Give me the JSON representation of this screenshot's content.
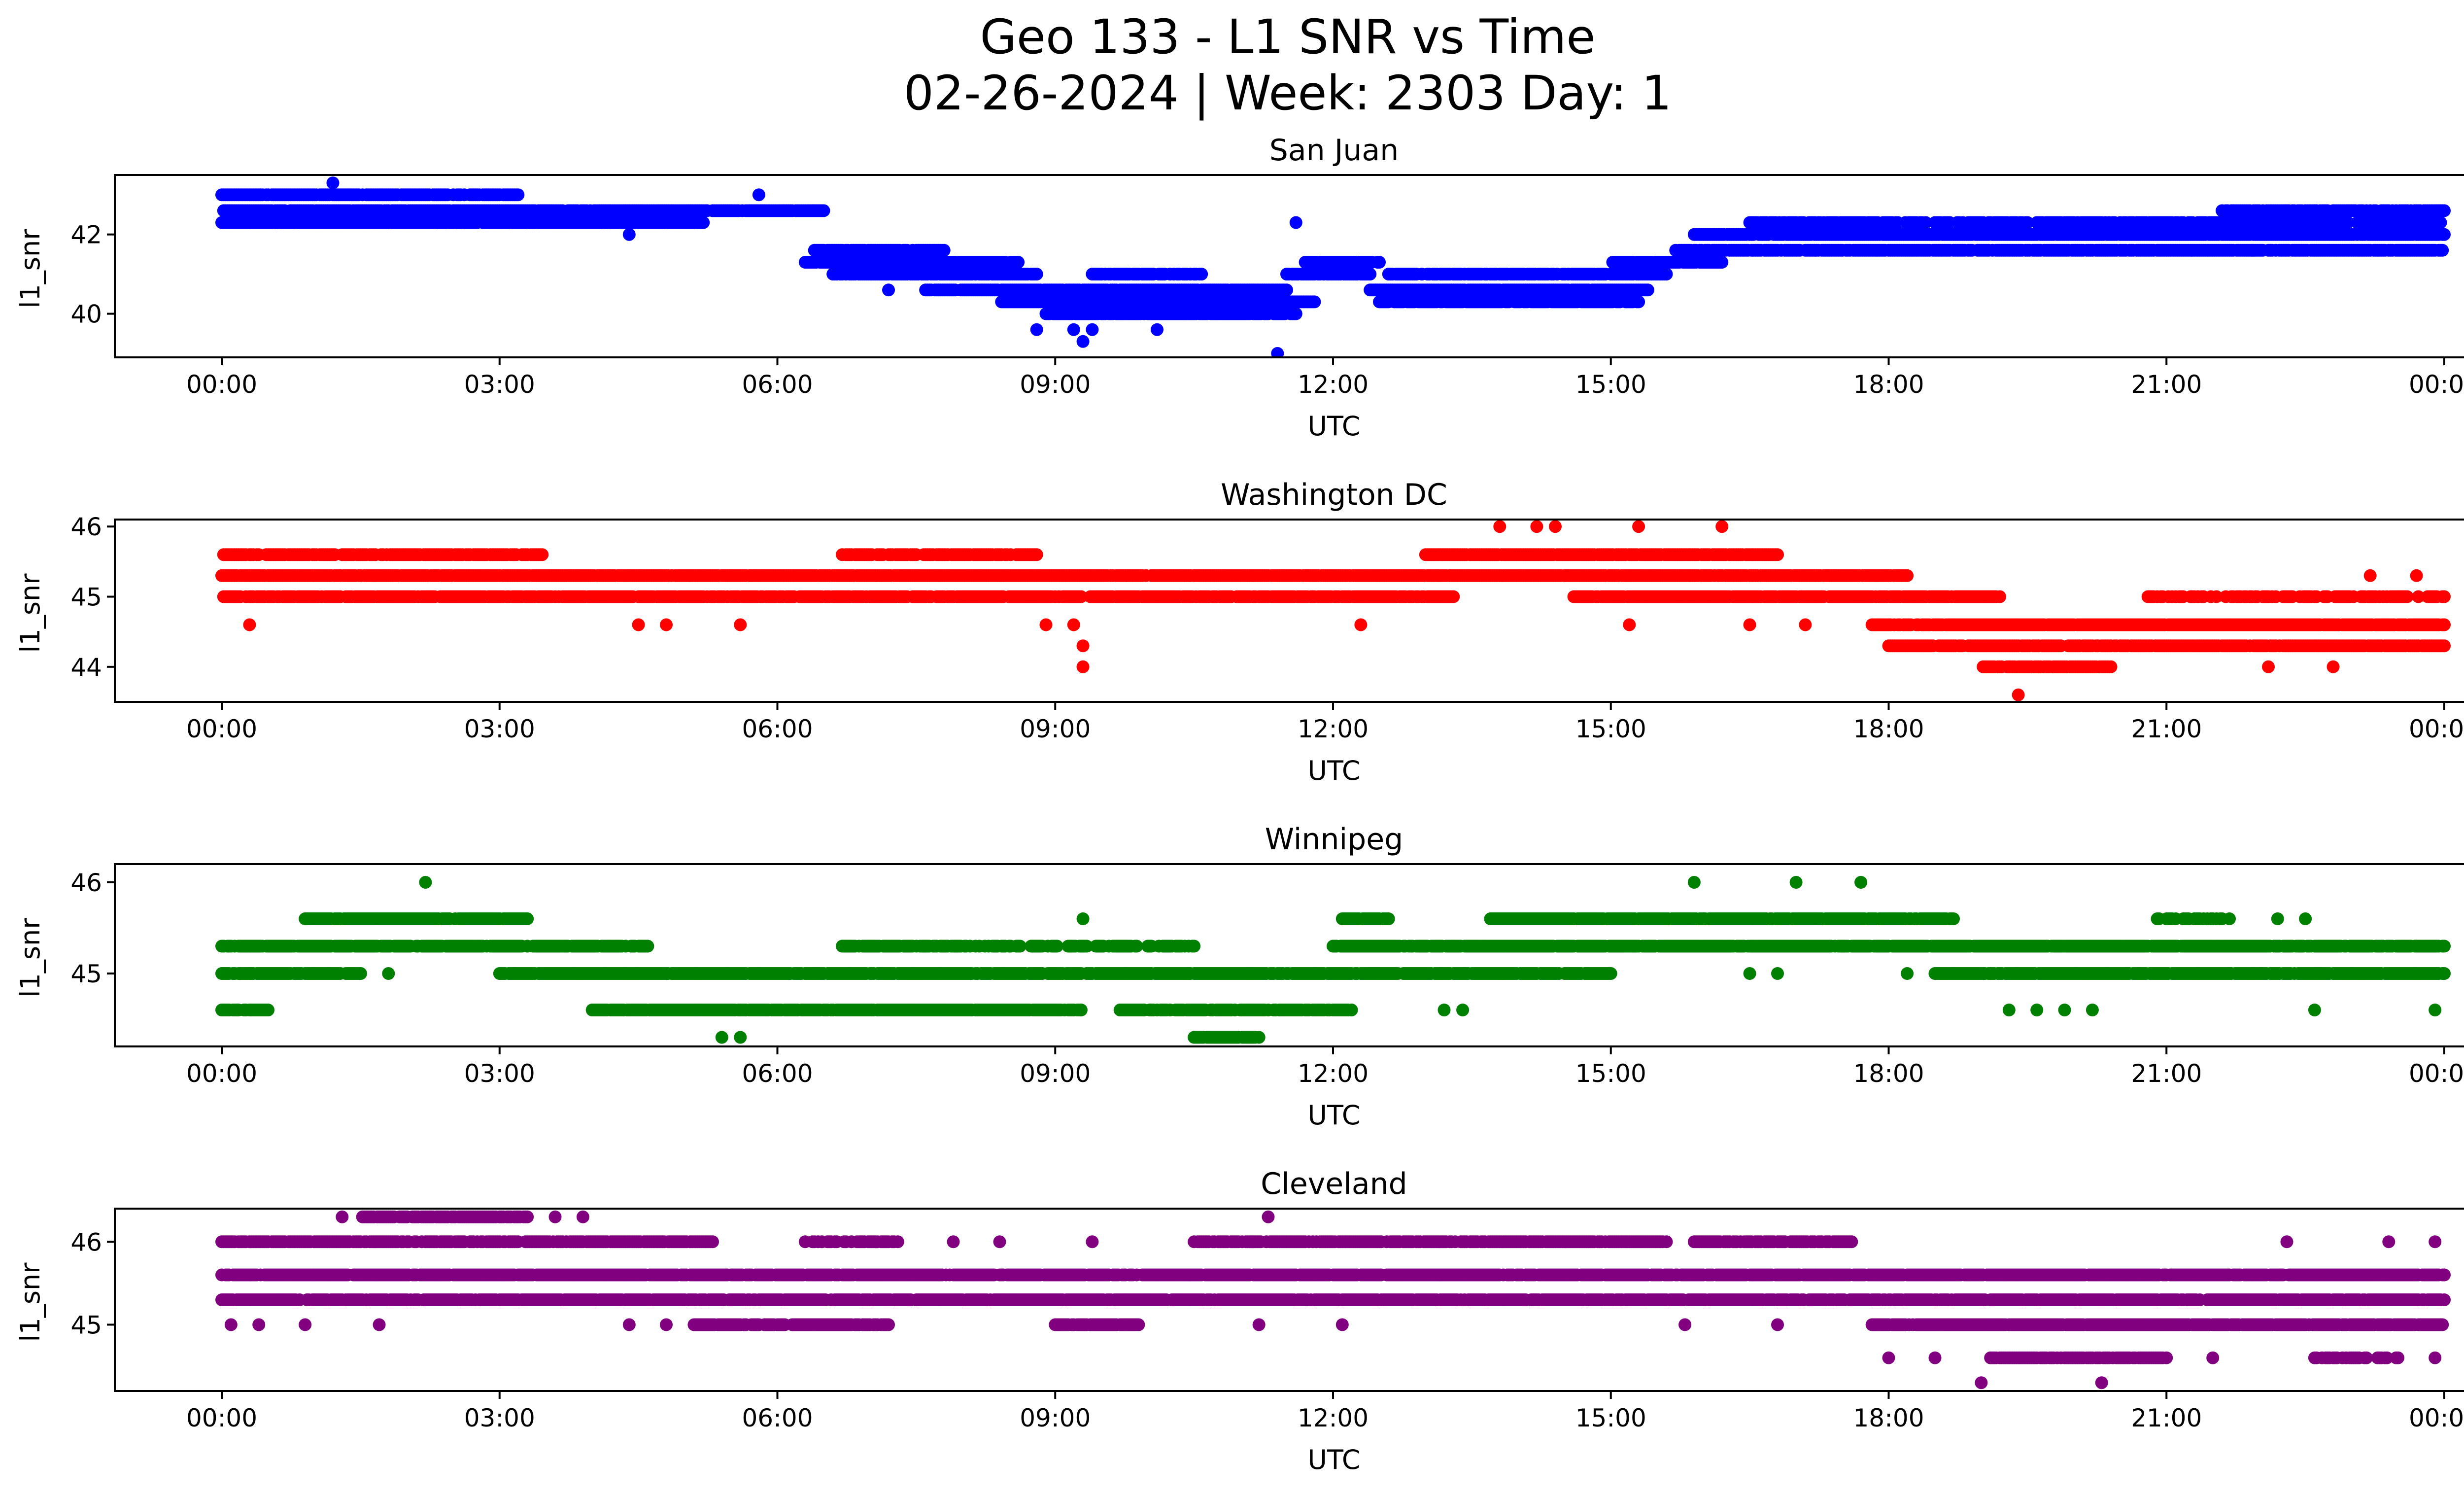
{
  "figure": {
    "title_line1": "Geo 133 - L1 SNR vs Time",
    "title_line2": "02-26-2024 | Week: 2303 Day: 1"
  },
  "chart_data": [
    {
      "type": "scatter",
      "title": "San Juan",
      "xlabel": "UTC",
      "ylabel": "l1_snr",
      "color": "#0000ff",
      "xlim": [
        0,
        24
      ],
      "ylim": [
        38.9,
        43.5
      ],
      "x_ticks": [
        "00:00",
        "03:00",
        "06:00",
        "09:00",
        "12:00",
        "15:00",
        "18:00",
        "21:00",
        "00:00"
      ],
      "y_ticks": [
        40,
        42
      ],
      "bands": [
        {
          "y": 43.0,
          "from": 0.0,
          "to": 3.2,
          "density": 0.9
        },
        {
          "y": 42.6,
          "from": 0.0,
          "to": 6.5,
          "density": 0.95
        },
        {
          "y": 42.3,
          "from": 0.0,
          "to": 5.2,
          "density": 0.9
        },
        {
          "y": 41.6,
          "from": 6.4,
          "to": 7.8,
          "density": 0.9
        },
        {
          "y": 41.3,
          "from": 6.3,
          "to": 8.6,
          "density": 0.9
        },
        {
          "y": 41.0,
          "from": 6.6,
          "to": 8.8,
          "density": 0.9
        },
        {
          "y": 40.6,
          "from": 7.6,
          "to": 11.5,
          "density": 0.9
        },
        {
          "y": 40.3,
          "from": 8.4,
          "to": 11.8,
          "density": 0.95
        },
        {
          "y": 40.0,
          "from": 8.9,
          "to": 11.6,
          "density": 0.9
        },
        {
          "y": 41.0,
          "from": 9.4,
          "to": 10.6,
          "density": 0.8
        },
        {
          "y": 41.0,
          "from": 11.5,
          "to": 12.4,
          "density": 0.9
        },
        {
          "y": 41.3,
          "from": 11.7,
          "to": 12.5,
          "density": 0.9
        },
        {
          "y": 40.6,
          "from": 12.4,
          "to": 15.4,
          "density": 0.95
        },
        {
          "y": 40.3,
          "from": 12.5,
          "to": 15.3,
          "density": 0.9
        },
        {
          "y": 41.0,
          "from": 12.6,
          "to": 15.6,
          "density": 0.85
        },
        {
          "y": 41.3,
          "from": 15.0,
          "to": 16.2,
          "density": 0.9
        },
        {
          "y": 41.6,
          "from": 15.7,
          "to": 24.0,
          "density": 0.9
        },
        {
          "y": 42.0,
          "from": 15.9,
          "to": 24.0,
          "density": 0.95
        },
        {
          "y": 42.3,
          "from": 16.5,
          "to": 24.0,
          "density": 0.75
        },
        {
          "y": 42.6,
          "from": 21.6,
          "to": 24.0,
          "density": 0.8
        }
      ],
      "outliers": [
        {
          "x": 1.2,
          "y": 43.3
        },
        {
          "x": 4.4,
          "y": 42.0
        },
        {
          "x": 5.8,
          "y": 43.0
        },
        {
          "x": 8.8,
          "y": 39.6
        },
        {
          "x": 9.2,
          "y": 39.6
        },
        {
          "x": 9.3,
          "y": 39.3
        },
        {
          "x": 9.4,
          "y": 39.6
        },
        {
          "x": 10.1,
          "y": 39.6
        },
        {
          "x": 11.4,
          "y": 39.0
        },
        {
          "x": 11.6,
          "y": 42.3
        },
        {
          "x": 7.2,
          "y": 40.6
        }
      ]
    },
    {
      "type": "scatter",
      "title": "Washington DC",
      "xlabel": "UTC",
      "ylabel": "l1_snr",
      "color": "#ff0000",
      "xlim": [
        0,
        24
      ],
      "ylim": [
        43.5,
        46.1
      ],
      "x_ticks": [
        "00:00",
        "03:00",
        "06:00",
        "09:00",
        "12:00",
        "15:00",
        "18:00",
        "21:00",
        "00:00"
      ],
      "y_ticks": [
        44,
        45,
        46
      ],
      "bands": [
        {
          "y": 45.6,
          "from": 0.0,
          "to": 3.5,
          "density": 0.85
        },
        {
          "y": 45.6,
          "from": 6.7,
          "to": 8.8,
          "density": 0.85
        },
        {
          "y": 45.6,
          "from": 13.0,
          "to": 16.8,
          "density": 0.95
        },
        {
          "y": 45.3,
          "from": 0.0,
          "to": 18.2,
          "density": 0.95
        },
        {
          "y": 45.0,
          "from": 0.0,
          "to": 13.3,
          "density": 0.85
        },
        {
          "y": 45.0,
          "from": 14.6,
          "to": 19.2,
          "density": 0.9
        },
        {
          "y": 45.0,
          "from": 20.8,
          "to": 24.0,
          "density": 0.6
        },
        {
          "y": 44.6,
          "from": 17.8,
          "to": 24.0,
          "density": 0.95
        },
        {
          "y": 44.3,
          "from": 18.0,
          "to": 24.0,
          "density": 0.9
        },
        {
          "y": 44.0,
          "from": 19.0,
          "to": 20.4,
          "density": 0.85
        }
      ],
      "outliers": [
        {
          "x": 0.3,
          "y": 44.6
        },
        {
          "x": 4.5,
          "y": 44.6
        },
        {
          "x": 4.8,
          "y": 44.6
        },
        {
          "x": 5.6,
          "y": 44.6
        },
        {
          "x": 8.9,
          "y": 44.6
        },
        {
          "x": 9.2,
          "y": 44.6
        },
        {
          "x": 9.3,
          "y": 44.3
        },
        {
          "x": 9.3,
          "y": 44.0
        },
        {
          "x": 12.3,
          "y": 44.6
        },
        {
          "x": 13.8,
          "y": 46.0
        },
        {
          "x": 14.2,
          "y": 46.0
        },
        {
          "x": 14.4,
          "y": 46.0
        },
        {
          "x": 15.3,
          "y": 46.0
        },
        {
          "x": 16.2,
          "y": 46.0
        },
        {
          "x": 15.2,
          "y": 44.6
        },
        {
          "x": 16.5,
          "y": 44.6
        },
        {
          "x": 17.1,
          "y": 44.6
        },
        {
          "x": 19.4,
          "y": 43.6
        },
        {
          "x": 22.8,
          "y": 44.0
        },
        {
          "x": 22.1,
          "y": 44.0
        },
        {
          "x": 23.2,
          "y": 45.3
        },
        {
          "x": 23.7,
          "y": 45.3
        }
      ]
    },
    {
      "type": "scatter",
      "title": "Winnipeg",
      "xlabel": "UTC",
      "ylabel": "l1_snr",
      "color": "#008000",
      "xlim": [
        0,
        24
      ],
      "ylim": [
        44.2,
        46.2
      ],
      "x_ticks": [
        "00:00",
        "03:00",
        "06:00",
        "09:00",
        "12:00",
        "15:00",
        "18:00",
        "21:00",
        "00:00"
      ],
      "y_ticks": [
        45,
        46
      ],
      "bands": [
        {
          "y": 45.6,
          "from": 0.9,
          "to": 3.3,
          "density": 0.95
        },
        {
          "y": 45.6,
          "from": 13.7,
          "to": 18.7,
          "density": 0.95
        },
        {
          "y": 45.6,
          "from": 12.1,
          "to": 12.6,
          "density": 0.9
        },
        {
          "y": 45.6,
          "from": 20.9,
          "to": 21.7,
          "density": 0.6
        },
        {
          "y": 45.3,
          "from": 0.0,
          "to": 4.6,
          "density": 0.9
        },
        {
          "y": 45.3,
          "from": 6.7,
          "to": 10.5,
          "density": 0.75
        },
        {
          "y": 45.3,
          "from": 12.0,
          "to": 24.0,
          "density": 0.95
        },
        {
          "y": 45.0,
          "from": 0.0,
          "to": 1.5,
          "density": 0.85
        },
        {
          "y": 45.0,
          "from": 3.0,
          "to": 15.0,
          "density": 0.95
        },
        {
          "y": 45.0,
          "from": 18.5,
          "to": 24.0,
          "density": 0.95
        },
        {
          "y": 44.6,
          "from": 4.0,
          "to": 9.3,
          "density": 0.95
        },
        {
          "y": 44.6,
          "from": 9.7,
          "to": 12.2,
          "density": 0.8
        },
        {
          "y": 44.6,
          "from": 0.0,
          "to": 0.5,
          "density": 0.8
        },
        {
          "y": 44.3,
          "from": 10.5,
          "to": 11.2,
          "density": 0.95
        }
      ],
      "outliers": [
        {
          "x": 2.2,
          "y": 46.0
        },
        {
          "x": 9.3,
          "y": 45.6
        },
        {
          "x": 15.9,
          "y": 46.0
        },
        {
          "x": 17.0,
          "y": 46.0
        },
        {
          "x": 17.7,
          "y": 46.0
        },
        {
          "x": 5.4,
          "y": 44.3
        },
        {
          "x": 5.6,
          "y": 44.3
        },
        {
          "x": 1.8,
          "y": 45.0
        },
        {
          "x": 16.5,
          "y": 45.0
        },
        {
          "x": 16.8,
          "y": 45.0
        },
        {
          "x": 18.2,
          "y": 45.0
        },
        {
          "x": 13.2,
          "y": 44.6
        },
        {
          "x": 13.4,
          "y": 44.6
        },
        {
          "x": 19.3,
          "y": 44.6
        },
        {
          "x": 19.6,
          "y": 44.6
        },
        {
          "x": 19.9,
          "y": 44.6
        },
        {
          "x": 20.2,
          "y": 44.6
        },
        {
          "x": 22.6,
          "y": 44.6
        },
        {
          "x": 23.9,
          "y": 44.6
        },
        {
          "x": 22.2,
          "y": 45.6
        },
        {
          "x": 22.5,
          "y": 45.6
        }
      ]
    },
    {
      "type": "scatter",
      "title": "Cleveland",
      "xlabel": "UTC",
      "ylabel": "l1_snr",
      "color": "#800080",
      "xlim": [
        0,
        24
      ],
      "ylim": [
        44.2,
        46.4
      ],
      "x_ticks": [
        "00:00",
        "03:00",
        "06:00",
        "09:00",
        "12:00",
        "15:00",
        "18:00",
        "21:00",
        "00:00"
      ],
      "y_ticks": [
        45,
        46
      ],
      "bands": [
        {
          "y": 46.0,
          "from": 0.0,
          "to": 5.3,
          "density": 0.85
        },
        {
          "y": 46.0,
          "from": 10.5,
          "to": 15.6,
          "density": 0.9
        },
        {
          "y": 46.0,
          "from": 15.9,
          "to": 17.6,
          "density": 0.85
        },
        {
          "y": 46.0,
          "from": 6.3,
          "to": 7.3,
          "density": 0.6
        },
        {
          "y": 45.6,
          "from": 0.0,
          "to": 24.0,
          "density": 0.95
        },
        {
          "y": 45.3,
          "from": 0.0,
          "to": 24.0,
          "density": 0.9
        },
        {
          "y": 45.0,
          "from": 5.1,
          "to": 7.2,
          "density": 0.85
        },
        {
          "y": 45.0,
          "from": 9.0,
          "to": 9.9,
          "density": 0.85
        },
        {
          "y": 45.0,
          "from": 17.8,
          "to": 24.0,
          "density": 0.95
        },
        {
          "y": 44.6,
          "from": 19.1,
          "to": 21.0,
          "density": 0.9
        },
        {
          "y": 44.6,
          "from": 22.6,
          "to": 23.5,
          "density": 0.7
        },
        {
          "y": 46.3,
          "from": 1.5,
          "to": 3.3,
          "density": 0.8
        }
      ],
      "outliers": [
        {
          "x": 1.3,
          "y": 46.3
        },
        {
          "x": 3.6,
          "y": 46.3
        },
        {
          "x": 3.9,
          "y": 46.3
        },
        {
          "x": 11.3,
          "y": 46.3
        },
        {
          "x": 0.1,
          "y": 45.0
        },
        {
          "x": 0.4,
          "y": 45.0
        },
        {
          "x": 0.9,
          "y": 45.0
        },
        {
          "x": 1.7,
          "y": 45.0
        },
        {
          "x": 4.4,
          "y": 45.0
        },
        {
          "x": 4.8,
          "y": 45.0
        },
        {
          "x": 11.2,
          "y": 45.0
        },
        {
          "x": 12.1,
          "y": 45.0
        },
        {
          "x": 15.8,
          "y": 45.0
        },
        {
          "x": 16.8,
          "y": 45.0
        },
        {
          "x": 18.0,
          "y": 44.6
        },
        {
          "x": 18.5,
          "y": 44.6
        },
        {
          "x": 21.5,
          "y": 44.6
        },
        {
          "x": 19.0,
          "y": 44.3
        },
        {
          "x": 20.3,
          "y": 44.3
        },
        {
          "x": 22.3,
          "y": 46.0
        },
        {
          "x": 23.4,
          "y": 46.0
        },
        {
          "x": 23.9,
          "y": 46.0
        },
        {
          "x": 8.4,
          "y": 46.0
        },
        {
          "x": 7.9,
          "y": 46.0
        },
        {
          "x": 9.4,
          "y": 46.0
        },
        {
          "x": 23.9,
          "y": 44.6
        }
      ]
    }
  ]
}
